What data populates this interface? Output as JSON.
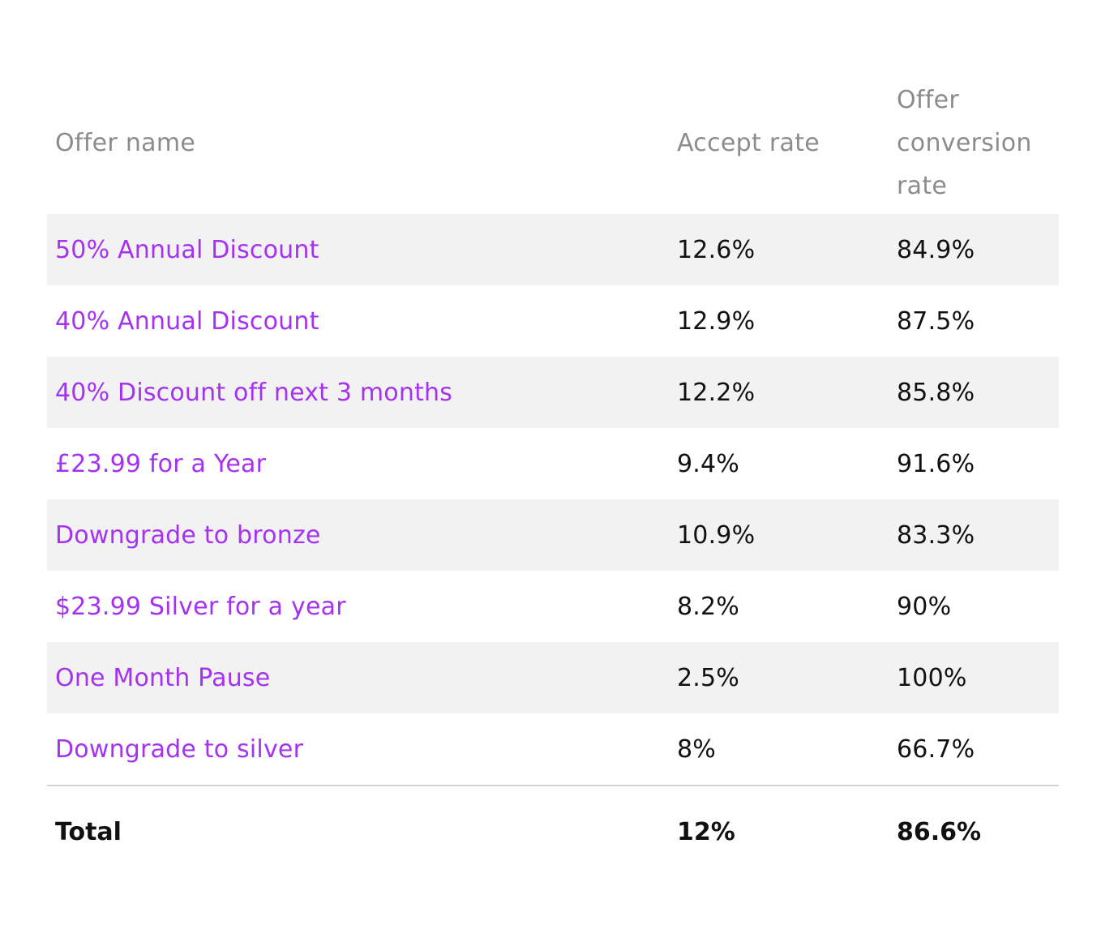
{
  "table": {
    "headers": {
      "offer_name": "Offer name",
      "accept_rate": "Accept rate",
      "conversion_line1": "Offer",
      "conversion_line2": "conversion",
      "conversion_line3": "rate"
    },
    "rows": [
      {
        "name": "50% Annual Discount",
        "accept": "12.6%",
        "conversion": "84.9%"
      },
      {
        "name": "40% Annual Discount",
        "accept": "12.9%",
        "conversion": "87.5%"
      },
      {
        "name": "40% Discount off next 3 months",
        "accept": "12.2%",
        "conversion": "85.8%"
      },
      {
        "name": "£23.99 for a Year",
        "accept": "9.4%",
        "conversion": "91.6%"
      },
      {
        "name": "Downgrade to bronze",
        "accept": "10.9%",
        "conversion": "83.3%"
      },
      {
        "name": "$23.99 Silver for a year",
        "accept": "8.2%",
        "conversion": "90%"
      },
      {
        "name": "One Month Pause",
        "accept": "2.5%",
        "conversion": "100%"
      },
      {
        "name": "Downgrade to silver",
        "accept": "8%",
        "conversion": "66.7%"
      }
    ],
    "total": {
      "label": "Total",
      "accept": "12%",
      "conversion": "86.6%"
    }
  },
  "colors": {
    "link": "#a532f0",
    "header_text": "#8c8c8c",
    "stripe": "#f2f2f2"
  }
}
